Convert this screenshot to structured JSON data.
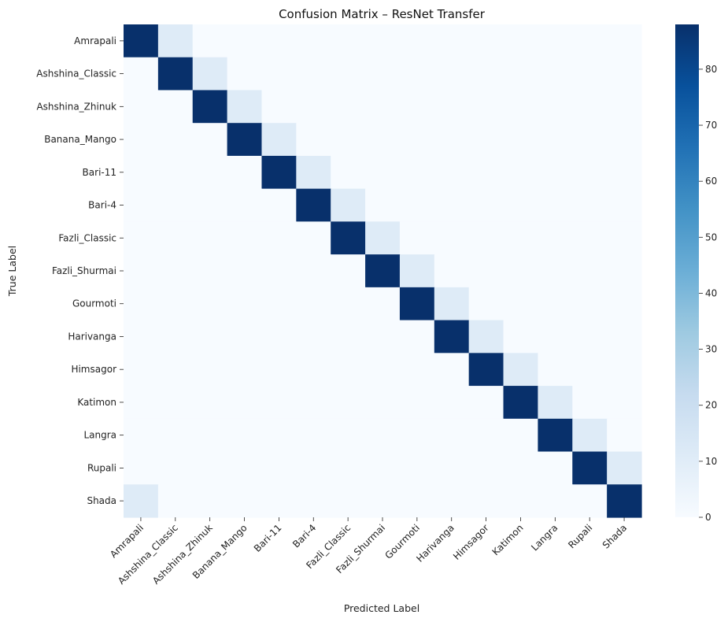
{
  "chart_data": {
    "type": "heatmap",
    "title": "Confusion Matrix – ResNet Transfer",
    "xlabel": "Predicted Label",
    "ylabel": "True Label",
    "x_categories": [
      "Amrapali",
      "Ashshina_Classic",
      "Ashshina_Zhinuk",
      "Banana_Mango",
      "Bari-11",
      "Bari-4",
      "Fazli_Classic",
      "Fazli_Shurmai",
      "Gourmoti",
      "Harivanga",
      "Himsagor",
      "Katimon",
      "Langra",
      "Rupali",
      "Shada"
    ],
    "y_categories": [
      "Amrapali",
      "Ashshina_Classic",
      "Ashshina_Zhinuk",
      "Banana_Mango",
      "Bari-11",
      "Bari-4",
      "Fazli_Classic",
      "Fazli_Shurmai",
      "Gourmoti",
      "Harivanga",
      "Himsagor",
      "Katimon",
      "Langra",
      "Rupali",
      "Shada"
    ],
    "values": [
      [
        88,
        11,
        0,
        0,
        0,
        0,
        0,
        0,
        0,
        0,
        0,
        0,
        0,
        0,
        0
      ],
      [
        0,
        88,
        11,
        0,
        0,
        0,
        0,
        0,
        0,
        0,
        0,
        0,
        0,
        0,
        0
      ],
      [
        0,
        0,
        88,
        11,
        0,
        0,
        0,
        0,
        0,
        0,
        0,
        0,
        0,
        0,
        0
      ],
      [
        0,
        0,
        0,
        88,
        11,
        0,
        0,
        0,
        0,
        0,
        0,
        0,
        0,
        0,
        0
      ],
      [
        0,
        0,
        0,
        0,
        88,
        11,
        0,
        0,
        0,
        0,
        0,
        0,
        0,
        0,
        0
      ],
      [
        0,
        0,
        0,
        0,
        0,
        88,
        11,
        0,
        0,
        0,
        0,
        0,
        0,
        0,
        0
      ],
      [
        0,
        0,
        0,
        0,
        0,
        0,
        88,
        11,
        0,
        0,
        0,
        0,
        0,
        0,
        0
      ],
      [
        0,
        0,
        0,
        0,
        0,
        0,
        0,
        88,
        11,
        0,
        0,
        0,
        0,
        0,
        0
      ],
      [
        0,
        0,
        0,
        0,
        0,
        0,
        0,
        0,
        88,
        11,
        0,
        0,
        0,
        0,
        0
      ],
      [
        0,
        0,
        0,
        0,
        0,
        0,
        0,
        0,
        0,
        88,
        11,
        0,
        0,
        0,
        0
      ],
      [
        0,
        0,
        0,
        0,
        0,
        0,
        0,
        0,
        0,
        0,
        88,
        11,
        0,
        0,
        0
      ],
      [
        0,
        0,
        0,
        0,
        0,
        0,
        0,
        0,
        0,
        0,
        0,
        88,
        11,
        0,
        0
      ],
      [
        0,
        0,
        0,
        0,
        0,
        0,
        0,
        0,
        0,
        0,
        0,
        0,
        88,
        11,
        0
      ],
      [
        0,
        0,
        0,
        0,
        0,
        0,
        0,
        0,
        0,
        0,
        0,
        0,
        0,
        88,
        11
      ],
      [
        11,
        0,
        0,
        0,
        0,
        0,
        0,
        0,
        0,
        0,
        0,
        0,
        0,
        0,
        88
      ]
    ],
    "colorbar": {
      "colormap": "Blues",
      "range": [
        0,
        88
      ],
      "ticks": [
        0,
        10,
        20,
        30,
        40,
        50,
        60,
        70,
        80
      ]
    }
  }
}
